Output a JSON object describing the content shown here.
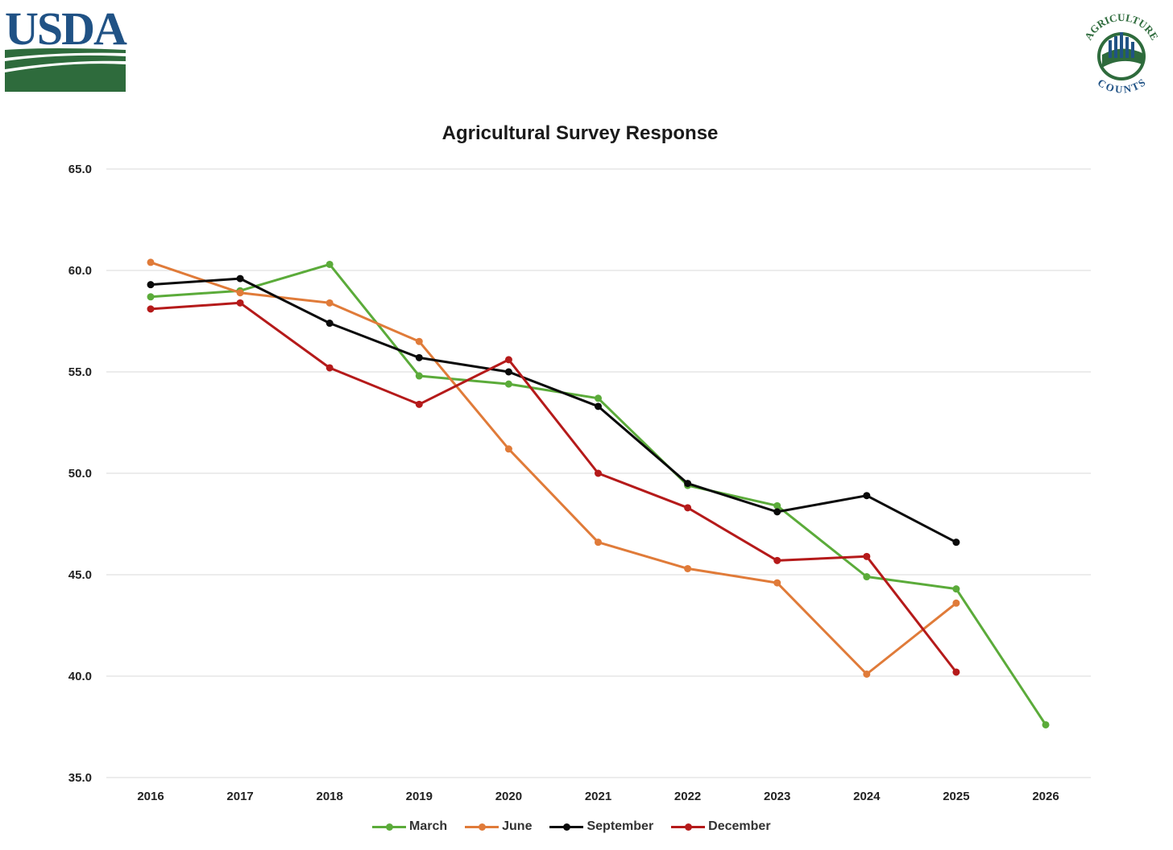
{
  "logos": {
    "usda_text": "USDA",
    "ag_top_text": "AGRICULTURE",
    "ag_bottom_text": "COUNTS"
  },
  "colors": {
    "usda_blue": "#205285",
    "usda_green": "#2e6b3c",
    "march": "#5bab3a",
    "june": "#e07b39",
    "september": "#0a0a0a",
    "december": "#b51a1a",
    "grid": "#d9d9d9"
  },
  "chart_data": {
    "type": "line",
    "title": "Agricultural Survey Response",
    "xlabel": "",
    "ylabel": "",
    "categories": [
      "2016",
      "2017",
      "2018",
      "2019",
      "2020",
      "2021",
      "2022",
      "2023",
      "2024",
      "2025",
      "2026"
    ],
    "ylim": [
      35.0,
      65.0
    ],
    "yticks": [
      "35.0",
      "40.0",
      "45.0",
      "50.0",
      "55.0",
      "60.0",
      "65.0"
    ],
    "grid": true,
    "legend_position": "bottom",
    "series": [
      {
        "name": "March",
        "color": "#5bab3a",
        "values": [
          58.7,
          59.0,
          60.3,
          54.8,
          54.4,
          53.7,
          49.4,
          48.4,
          44.9,
          44.3,
          37.6
        ]
      },
      {
        "name": "June",
        "color": "#e07b39",
        "values": [
          60.4,
          58.9,
          58.4,
          56.5,
          51.2,
          46.6,
          45.3,
          44.6,
          40.1,
          43.6,
          null
        ]
      },
      {
        "name": "September",
        "color": "#0a0a0a",
        "values": [
          59.3,
          59.6,
          57.4,
          55.7,
          55.0,
          53.3,
          49.5,
          48.1,
          48.9,
          46.6,
          null
        ]
      },
      {
        "name": "December",
        "color": "#b51a1a",
        "values": [
          58.1,
          58.4,
          55.2,
          53.4,
          55.6,
          50.0,
          48.3,
          45.7,
          45.9,
          40.2,
          null
        ]
      }
    ]
  }
}
